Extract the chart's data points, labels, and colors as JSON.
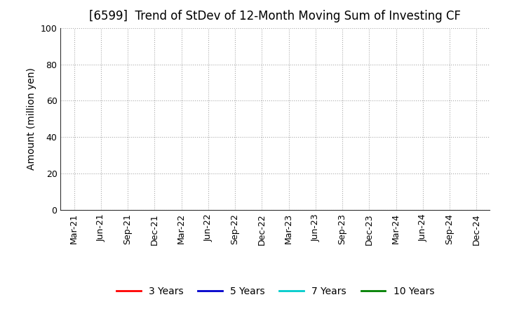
{
  "title": "[6599]  Trend of StDev of 12-Month Moving Sum of Investing CF",
  "ylabel": "Amount (million yen)",
  "ylim": [
    0,
    100
  ],
  "yticks": [
    0,
    20,
    40,
    60,
    80,
    100
  ],
  "x_labels": [
    "Mar-21",
    "Jun-21",
    "Sep-21",
    "Dec-21",
    "Mar-22",
    "Jun-22",
    "Sep-22",
    "Dec-22",
    "Mar-23",
    "Jun-23",
    "Sep-23",
    "Dec-23",
    "Mar-24",
    "Jun-24",
    "Sep-24",
    "Dec-24"
  ],
  "background_color": "#ffffff",
  "grid_color": "#aaaaaa",
  "legend_entries": [
    {
      "label": "3 Years",
      "color": "#ff0000"
    },
    {
      "label": "5 Years",
      "color": "#0000cc"
    },
    {
      "label": "7 Years",
      "color": "#00cccc"
    },
    {
      "label": "10 Years",
      "color": "#008000"
    }
  ],
  "title_fontsize": 12,
  "ylabel_fontsize": 10,
  "tick_fontsize": 9,
  "legend_fontsize": 10
}
